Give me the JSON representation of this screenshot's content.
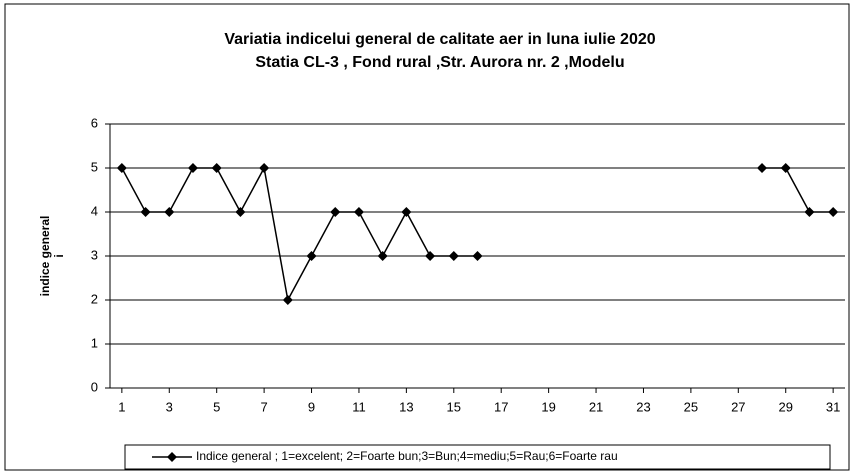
{
  "chart_data": {
    "type": "line",
    "title": "Variatia indicelui general de calitate aer in luna iulie 2020",
    "subtitle": "Statia CL-3 , Fond rural ,Str. Aurora nr. 2 ,Modelu",
    "ylabel": [
      "indice general",
      "i"
    ],
    "x": [
      1,
      2,
      3,
      4,
      5,
      6,
      7,
      8,
      9,
      10,
      11,
      12,
      13,
      14,
      15,
      16,
      17,
      18,
      19,
      20,
      21,
      22,
      23,
      24,
      25,
      26,
      27,
      28,
      29,
      30,
      31
    ],
    "series": [
      {
        "name": "Indice  general ; 1=excelent; 2=Foarte bun;3=Bun;4=mediu;5=Rau;6=Foarte rau",
        "color": "#000000",
        "values": [
          5,
          4,
          4,
          5,
          5,
          4,
          5,
          2,
          3,
          4,
          4,
          3,
          4,
          3,
          3,
          3,
          null,
          null,
          null,
          null,
          null,
          null,
          null,
          null,
          null,
          null,
          null,
          5,
          5,
          4,
          4
        ]
      }
    ],
    "xlim": [
      0.5,
      31.5
    ],
    "xticks": [
      1,
      3,
      5,
      7,
      9,
      11,
      13,
      15,
      17,
      19,
      21,
      23,
      25,
      27,
      29,
      31
    ],
    "ylim": [
      0,
      6
    ],
    "yticks": [
      0,
      1,
      2,
      3,
      4,
      5,
      6
    ],
    "grid": true
  }
}
